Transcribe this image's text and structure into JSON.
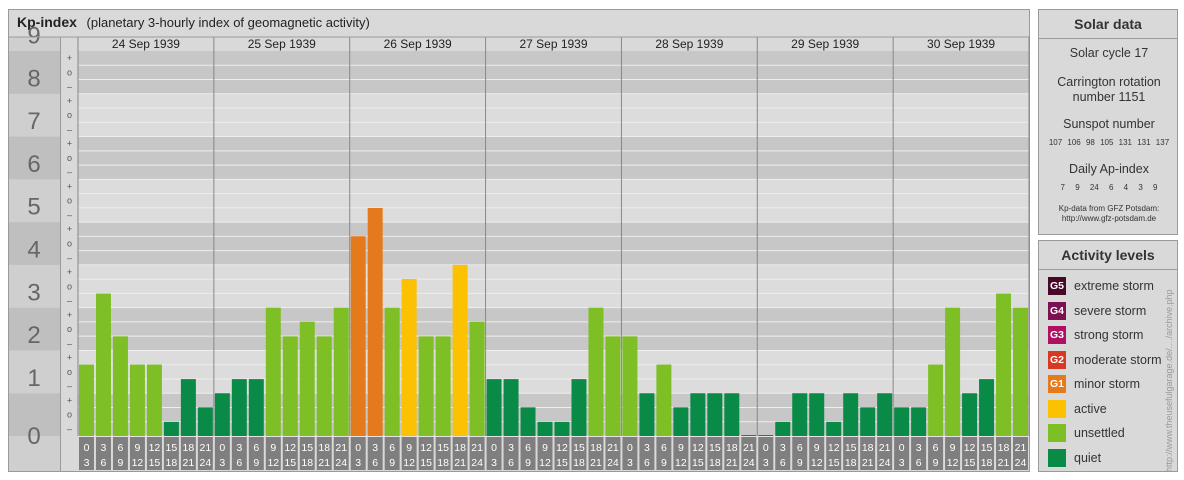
{
  "title": {
    "main": "Kp-index",
    "subtitle": "(planetary 3-hourly index of geomagnetic activity)"
  },
  "chart_data": {
    "type": "bar",
    "title": "Kp-index",
    "subtitle": "(planetary 3-hourly index of geomagnetic activity)",
    "ylim": [
      0,
      9
    ],
    "y_ticks": [
      "0",
      "1",
      "2",
      "3",
      "4",
      "5",
      "6",
      "7",
      "8",
      "9"
    ],
    "minor_labels": [
      "–",
      "o",
      "+"
    ],
    "days": [
      "24 Sep 1939",
      "25 Sep 1939",
      "26 Sep 1939",
      "27 Sep 1939",
      "28 Sep 1939",
      "29 Sep 1939",
      "30 Sep 1939"
    ],
    "interval_labels": [
      [
        "0",
        "3"
      ],
      [
        "3",
        "6"
      ],
      [
        "6",
        "9"
      ],
      [
        "9",
        "12"
      ],
      [
        "12",
        "15"
      ],
      [
        "15",
        "18"
      ],
      [
        "18",
        "21"
      ],
      [
        "21",
        "24"
      ]
    ],
    "values": [
      [
        1.67,
        3.33,
        2.33,
        1.67,
        1.67,
        0.33,
        1.33,
        0.67
      ],
      [
        1.0,
        1.33,
        1.33,
        3.0,
        2.33,
        2.67,
        2.33,
        3.0
      ],
      [
        4.67,
        5.33,
        3.0,
        3.67,
        2.33,
        2.33,
        4.0,
        2.67
      ],
      [
        1.33,
        1.33,
        0.67,
        0.33,
        0.33,
        1.33,
        3.0,
        2.33
      ],
      [
        2.33,
        1.0,
        1.67,
        0.67,
        1.0,
        1.0,
        1.0,
        0.0
      ],
      [
        0.0,
        0.33,
        1.0,
        1.0,
        0.33,
        1.0,
        0.67,
        1.0
      ],
      [
        0.67,
        0.67,
        1.67,
        3.0,
        1.0,
        1.33,
        3.33,
        3.0
      ]
    ],
    "colors": {
      "quiet": "#0a8a47",
      "unsettled": "#7ebf26",
      "active": "#fcc100",
      "minor_storm": "#e47a1c",
      "moderate_storm": "#d63a22",
      "strong_storm": "#b01062",
      "severe_storm": "#7d1050",
      "extreme_storm": "#4a0828"
    }
  },
  "solar": {
    "heading": "Solar data",
    "cycle": "Solar cycle 17",
    "carrington_1": "Carrington rotation",
    "carrington_2": "number 1151",
    "sunspot_label": "Sunspot number",
    "sunspot_values": "107 106 98 105 131 131 137",
    "ap_label": "Daily Ap-index",
    "ap_values": "7 9 24 6 4 3 9",
    "source_1": "Kp-data from GFZ Potsdam:",
    "source_2": "http://www.gfz-potsdam.de"
  },
  "activity": {
    "heading": "Activity levels",
    "levels": [
      {
        "code": "G5",
        "label": "extreme storm",
        "color": "#4a0828"
      },
      {
        "code": "G4",
        "label": "severe storm",
        "color": "#7d1050"
      },
      {
        "code": "G3",
        "label": "strong storm",
        "color": "#b01062"
      },
      {
        "code": "G2",
        "label": "moderate storm",
        "color": "#d63a22"
      },
      {
        "code": "G1",
        "label": "minor storm",
        "color": "#e47a1c"
      },
      {
        "code": "",
        "label": "active",
        "color": "#fcc100"
      },
      {
        "code": "",
        "label": "unsettled",
        "color": "#7ebf26"
      },
      {
        "code": "",
        "label": "quiet",
        "color": "#0a8a47"
      }
    ]
  },
  "watermark": "http://www.theusefulgarage.de/..../archive.php"
}
